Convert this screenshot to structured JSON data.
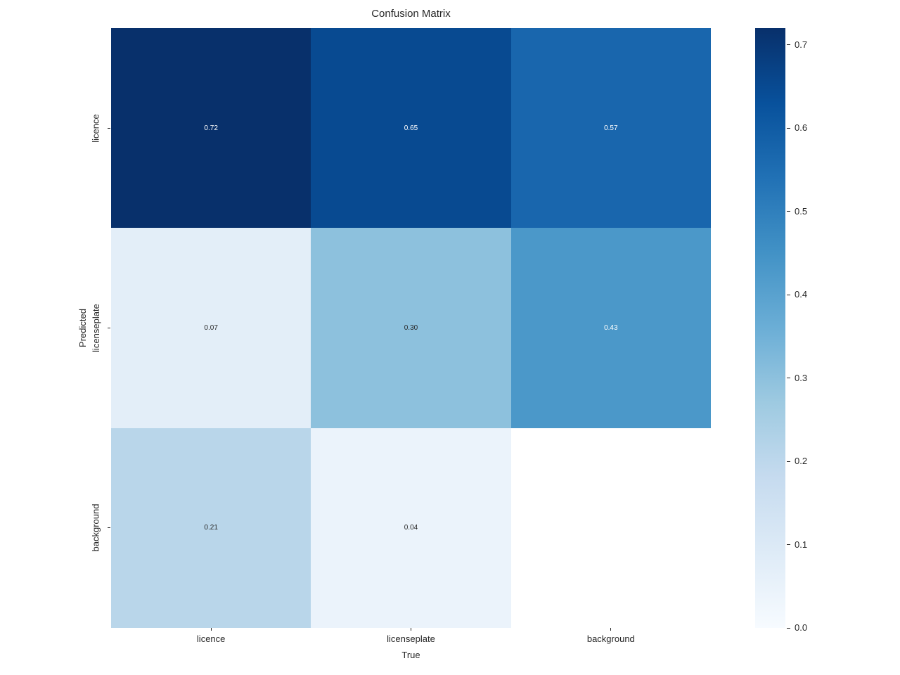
{
  "chart_data": {
    "type": "heatmap",
    "title": "Confusion Matrix",
    "xlabel": "True",
    "ylabel": "Predicted",
    "x_categories": [
      "licence",
      "licenseplate",
      "background"
    ],
    "y_categories": [
      "licence",
      "licenseplate",
      "background"
    ],
    "values": [
      [
        0.72,
        0.65,
        0.57
      ],
      [
        0.07,
        0.3,
        0.43
      ],
      [
        0.21,
        0.04,
        null
      ]
    ],
    "cell_labels": [
      [
        "0.72",
        "0.65",
        "0.57"
      ],
      [
        "0.07",
        "0.30",
        "0.43"
      ],
      [
        "0.21",
        "0.04",
        ""
      ]
    ],
    "cell_colors": [
      [
        "#08306b",
        "#084a91",
        "#1966ad"
      ],
      [
        "#e3eef8",
        "#8dc1dd",
        "#4b98c9"
      ],
      [
        "#b9d6ea",
        "#ebf3fb",
        "#ffffff"
      ]
    ],
    "cell_text_colors": [
      [
        "#ffffff",
        "#ffffff",
        "#ffffff"
      ],
      [
        "#262626",
        "#262626",
        "#ffffff"
      ],
      [
        "#262626",
        "#262626",
        "#262626"
      ]
    ],
    "colormap": "Blues",
    "vmin": 0.0,
    "vmax": 0.72,
    "grid": false,
    "colorbar": {
      "position": "right",
      "tick_values": [
        0.0,
        0.1,
        0.2,
        0.3,
        0.4,
        0.5,
        0.6,
        0.7
      ],
      "tick_labels": [
        "0.0",
        "0.1",
        "0.2",
        "0.3",
        "0.4",
        "0.5",
        "0.6",
        "0.7"
      ]
    }
  },
  "colors": {
    "background": "#ffffff",
    "tick": "#262626",
    "text": "#262626",
    "annot_light": "#ffffff",
    "annot_dark": "#262626"
  }
}
